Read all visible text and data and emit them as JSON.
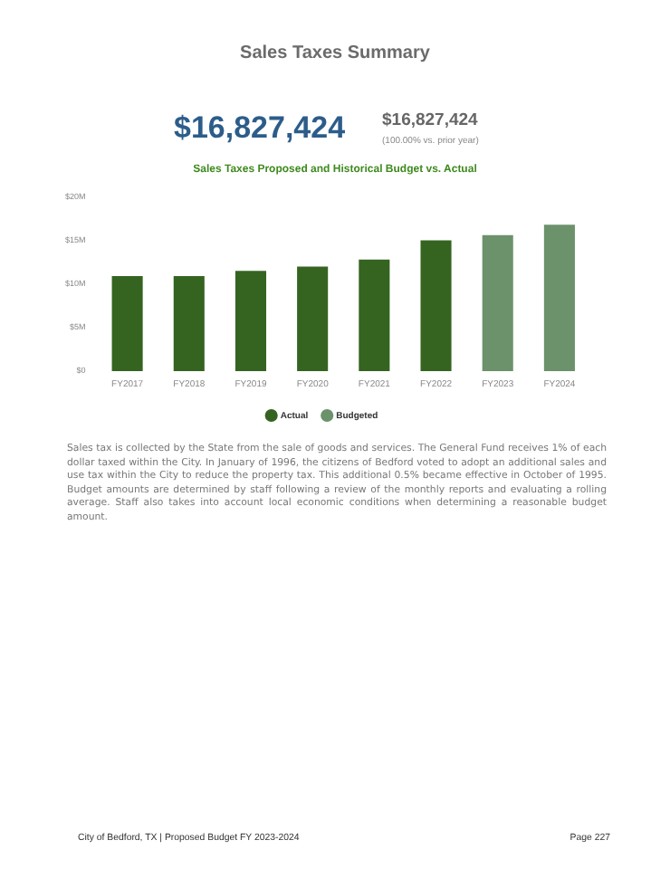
{
  "chart_data": {
    "type": "bar",
    "title": "Sales Taxes Summary",
    "subtitle": "Sales Taxes Proposed and Historical Budget vs. Actual",
    "categories": [
      "FY2017",
      "FY2018",
      "FY2019",
      "FY2020",
      "FY2021",
      "FY2022",
      "FY2023",
      "FY2024"
    ],
    "series": [
      {
        "name": "Actual",
        "color": "#356421",
        "values": [
          10.9,
          10.9,
          11.5,
          12.0,
          12.8,
          15.0,
          null,
          null
        ]
      },
      {
        "name": "Budgeted",
        "color": "#6b926b",
        "values": [
          null,
          null,
          null,
          null,
          null,
          null,
          15.6,
          16.8
        ]
      }
    ],
    "ylim": [
      0,
      20
    ],
    "yticks": [
      {
        "value": 0,
        "label": "$0"
      },
      {
        "value": 5,
        "label": "$5M"
      },
      {
        "value": 10,
        "label": "$10M"
      },
      {
        "value": 15,
        "label": "$15M"
      },
      {
        "value": 20,
        "label": "$20M"
      }
    ],
    "grid": false,
    "legend": "bottom",
    "marker": "circle",
    "annotations": [
      "$16,827,424",
      "$16,827,424",
      "(100.00% vs. prior year)",
      "Sales tax is collected by the State from the sale of goods and services. The General Fund receives 1% of each dollar taxed within the City. In January of 1996, the citizens of Bedford voted to adopt an additional sales and use tax within the City to reduce the property tax. This additional 0.5% became effective in October of 1995. Budget amounts are determined by staff following a review of the monthly reports and evaluating a rolling average.  Staff also takes into account local economic conditions when determining a reasonable budget amount.",
      "City of Bedford, TX | Proposed Budget FY 2023-2024",
      "Page 227"
    ]
  }
}
